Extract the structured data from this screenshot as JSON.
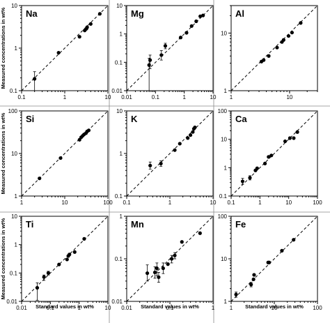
{
  "chart_data": [
    {
      "type": "scatter",
      "element": "Na",
      "scale": "log",
      "xlim": [
        0.1,
        10
      ],
      "ylim": [
        0.1,
        10
      ],
      "xticks": [
        "0.1",
        "1",
        "10"
      ],
      "yticks": [
        "0.1",
        "1",
        "10"
      ],
      "xlabel": "",
      "ylabel": "Measured concentrations in wt%",
      "reference_line": "1:1 dashed",
      "points": [
        {
          "x": 0.2,
          "y": 0.19,
          "err": [
            0.1,
            0.28
          ]
        },
        {
          "x": 0.72,
          "y": 0.78
        },
        {
          "x": 2.2,
          "y": 1.85
        },
        {
          "x": 2.9,
          "y": 2.6
        },
        {
          "x": 3.1,
          "y": 2.8
        },
        {
          "x": 3.2,
          "y": 2.9
        },
        {
          "x": 3.3,
          "y": 3.1
        },
        {
          "x": 4.0,
          "y": 3.7
        },
        {
          "x": 6.5,
          "y": 6.4
        }
      ]
    },
    {
      "type": "scatter",
      "element": "Mg",
      "scale": "log",
      "xlim": [
        0.01,
        10
      ],
      "ylim": [
        0.01,
        10
      ],
      "xticks": [
        "0.01",
        "0.1",
        "1",
        "10"
      ],
      "yticks": [
        "0.01",
        "0.1",
        "1",
        "10"
      ],
      "xlabel": "",
      "ylabel": "",
      "reference_line": "1:1 dashed",
      "points": [
        {
          "x": 0.06,
          "y": 0.08,
          "err": [
            0.01,
            0.14
          ]
        },
        {
          "x": 0.065,
          "y": 0.12,
          "err": [
            0.06,
            0.18
          ]
        },
        {
          "x": 0.16,
          "y": 0.18,
          "err": [
            0.12,
            0.26
          ]
        },
        {
          "x": 0.22,
          "y": 0.38,
          "err": [
            0.3,
            0.47
          ]
        },
        {
          "x": 0.75,
          "y": 0.75
        },
        {
          "x": 1.2,
          "y": 1.1
        },
        {
          "x": 1.8,
          "y": 1.9
        },
        {
          "x": 2.6,
          "y": 2.8
        },
        {
          "x": 3.6,
          "y": 4.2
        },
        {
          "x": 4.5,
          "y": 4.5
        }
      ]
    },
    {
      "type": "scatter",
      "element": "Al",
      "scale": "log",
      "xlim": [
        1,
        30
      ],
      "ylim": [
        1,
        30
      ],
      "xticks": [
        "1",
        "10"
      ],
      "yticks": [
        "1",
        "10"
      ],
      "xlabel": "",
      "ylabel": "",
      "reference_line": "1:1 dashed",
      "points": [
        {
          "x": 3.3,
          "y": 3.2
        },
        {
          "x": 3.6,
          "y": 3.4
        },
        {
          "x": 4.4,
          "y": 4.0
        },
        {
          "x": 6.1,
          "y": 5.6
        },
        {
          "x": 7.4,
          "y": 7.0
        },
        {
          "x": 7.9,
          "y": 7.6
        },
        {
          "x": 9.6,
          "y": 8.9
        },
        {
          "x": 11.0,
          "y": 10.2
        },
        {
          "x": 15.5,
          "y": 15.0
        }
      ]
    },
    {
      "type": "scatter",
      "element": "Si",
      "scale": "log",
      "xlim": [
        1,
        100
      ],
      "ylim": [
        1,
        100
      ],
      "xticks": [
        "1",
        "10",
        "100"
      ],
      "yticks": [
        "1",
        "10",
        "100"
      ],
      "xlabel": "",
      "ylabel": "Measured concentrations in wt%",
      "reference_line": "1:1 dashed",
      "points": [
        {
          "x": 2.6,
          "y": 2.6
        },
        {
          "x": 8.0,
          "y": 7.8
        },
        {
          "x": 22,
          "y": 21
        },
        {
          "x": 24,
          "y": 24
        },
        {
          "x": 26,
          "y": 26
        },
        {
          "x": 28,
          "y": 28
        },
        {
          "x": 31,
          "y": 30
        },
        {
          "x": 33,
          "y": 33
        },
        {
          "x": 36,
          "y": 35
        }
      ]
    },
    {
      "type": "scatter",
      "element": "K",
      "scale": "log",
      "xlim": [
        0.1,
        10
      ],
      "ylim": [
        0.1,
        10
      ],
      "xticks": [
        "0.1",
        "1",
        "10"
      ],
      "yticks": [
        "0.1",
        "1",
        "10"
      ],
      "xlabel": "",
      "ylabel": "",
      "reference_line": "1:1 dashed",
      "points": [
        {
          "x": 0.35,
          "y": 0.52,
          "err": [
            0.43,
            0.63
          ]
        },
        {
          "x": 0.62,
          "y": 0.58,
          "err": [
            0.5,
            0.67
          ]
        },
        {
          "x": 1.3,
          "y": 1.2
        },
        {
          "x": 1.7,
          "y": 1.7
        },
        {
          "x": 2.6,
          "y": 2.3
        },
        {
          "x": 3.0,
          "y": 2.7
        },
        {
          "x": 3.4,
          "y": 3.2
        },
        {
          "x": 3.6,
          "y": 3.8
        },
        {
          "x": 3.8,
          "y": 4.1
        }
      ]
    },
    {
      "type": "scatter",
      "element": "Ca",
      "scale": "log",
      "xlim": [
        0.1,
        100
      ],
      "ylim": [
        0.1,
        100
      ],
      "xticks": [
        "0.1",
        "1",
        "10",
        "100"
      ],
      "yticks": [
        "0.1",
        "1",
        "10",
        "100"
      ],
      "xlabel": "",
      "ylabel": "",
      "reference_line": "1:1 dashed",
      "points": [
        {
          "x": 0.25,
          "y": 0.33,
          "err": [
            0.26,
            0.42
          ]
        },
        {
          "x": 0.45,
          "y": 0.44,
          "err": [
            0.37,
            0.52
          ]
        },
        {
          "x": 0.7,
          "y": 0.8
        },
        {
          "x": 0.8,
          "y": 0.95
        },
        {
          "x": 1.5,
          "y": 1.4
        },
        {
          "x": 2.0,
          "y": 2.4
        },
        {
          "x": 2.5,
          "y": 2.7
        },
        {
          "x": 7.5,
          "y": 8.5
        },
        {
          "x": 11,
          "y": 11
        },
        {
          "x": 15,
          "y": 11
        },
        {
          "x": 20,
          "y": 18
        }
      ]
    },
    {
      "type": "scatter",
      "element": "Ti",
      "scale": "log",
      "xlim": [
        0.01,
        10
      ],
      "ylim": [
        0.01,
        10
      ],
      "xticks": [
        "0.01",
        "0.1",
        "1",
        "10"
      ],
      "yticks": [
        "0.01",
        "0.1",
        "1",
        "10"
      ],
      "xlabel": "Standard values in wt%",
      "ylabel": "Measured concentrations in wt%",
      "reference_line": "1:1 dashed",
      "points": [
        {
          "x": 0.035,
          "y": 0.03,
          "err": [
            0.011,
            0.045
          ]
        },
        {
          "x": 0.06,
          "y": 0.072,
          "err": [
            0.055,
            0.085
          ]
        },
        {
          "x": 0.085,
          "y": 0.1,
          "err": [
            0.085,
            0.115
          ]
        },
        {
          "x": 0.2,
          "y": 0.2
        },
        {
          "x": 0.38,
          "y": 0.3
        },
        {
          "x": 0.42,
          "y": 0.4
        },
        {
          "x": 0.46,
          "y": 0.45
        },
        {
          "x": 0.7,
          "y": 0.55
        },
        {
          "x": 1.5,
          "y": 1.6
        }
      ]
    },
    {
      "type": "scatter",
      "element": "Mn",
      "scale": "log",
      "xlim": [
        0.01,
        1
      ],
      "ylim": [
        0.01,
        1
      ],
      "xticks": [
        "0.01",
        "0.1",
        "1"
      ],
      "yticks": [
        "0.01",
        "0.1",
        "1"
      ],
      "xlabel": "Standard values in wt%",
      "ylabel": "",
      "reference_line": "1:1 dashed",
      "points": [
        {
          "x": 0.03,
          "y": 0.046,
          "err": [
            0.03,
            0.072
          ]
        },
        {
          "x": 0.045,
          "y": 0.048,
          "err": [
            0.035,
            0.065
          ]
        },
        {
          "x": 0.05,
          "y": 0.06,
          "err": [
            0.04,
            0.08
          ]
        },
        {
          "x": 0.055,
          "y": 0.037,
          "err": [
            0.028,
            0.048
          ]
        },
        {
          "x": 0.07,
          "y": 0.06,
          "err": [
            0.045,
            0.08
          ]
        },
        {
          "x": 0.09,
          "y": 0.075
        },
        {
          "x": 0.11,
          "y": 0.1,
          "err": [
            0.08,
            0.12
          ]
        },
        {
          "x": 0.13,
          "y": 0.12,
          "err": [
            0.1,
            0.14
          ]
        },
        {
          "x": 0.19,
          "y": 0.25
        },
        {
          "x": 0.5,
          "y": 0.4
        }
      ]
    },
    {
      "type": "scatter",
      "element": "Fe",
      "scale": "log",
      "xlim": [
        1,
        100
      ],
      "ylim": [
        1,
        100
      ],
      "xticks": [
        "1",
        "10",
        "100"
      ],
      "yticks": [
        "1",
        "10",
        "100"
      ],
      "xlabel": "Standard values in wt%",
      "ylabel": "",
      "reference_line": "1:1 dashed",
      "points": [
        {
          "x": 1.3,
          "y": 1.45,
          "err": [
            1.25,
            1.65
          ]
        },
        {
          "x": 2.9,
          "y": 2.5,
          "err": [
            2.2,
            2.8
          ]
        },
        {
          "x": 3.3,
          "y": 3.3
        },
        {
          "x": 3.4,
          "y": 4.2
        },
        {
          "x": 7.2,
          "y": 8.2
        },
        {
          "x": 7.6,
          "y": 8.2
        },
        {
          "x": 15,
          "y": 15.5
        },
        {
          "x": 28,
          "y": 28
        }
      ]
    }
  ]
}
